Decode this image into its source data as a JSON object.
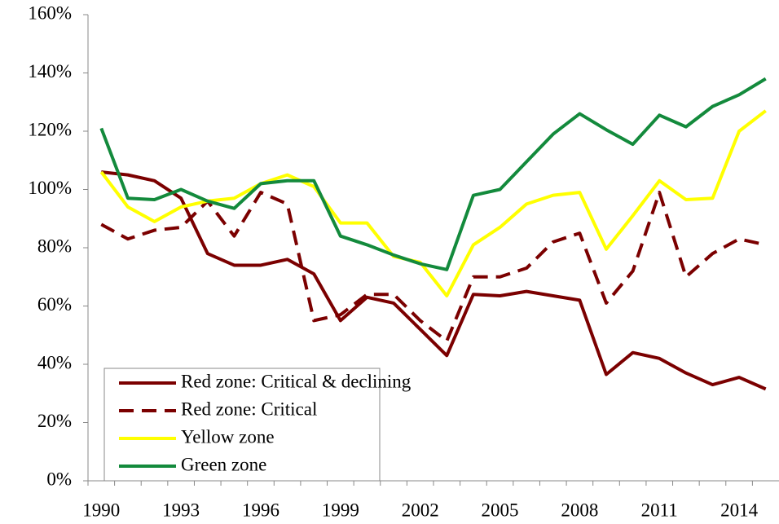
{
  "chart_data": {
    "type": "line",
    "categories": [
      "1990",
      null,
      null,
      "1993",
      null,
      null,
      "1996",
      null,
      null,
      "1999",
      null,
      null,
      "2002",
      null,
      null,
      "2005",
      null,
      null,
      "2008",
      null,
      null,
      "2011",
      null,
      null,
      "2014",
      null
    ],
    "series": [
      {
        "name": "Red zone: Critical & declining",
        "color": "#7b0000",
        "dash": false,
        "values": [
          106,
          105,
          103,
          97,
          78,
          74,
          74,
          76,
          71,
          55,
          63,
          61,
          52,
          43,
          64,
          63.5,
          65,
          63.5,
          62,
          36.5,
          44,
          42,
          37,
          33,
          35.5,
          31.5
        ]
      },
      {
        "name": "Red zone: Critical",
        "color": "#7b0000",
        "dash": true,
        "values": [
          88,
          83,
          86,
          87,
          96,
          84,
          99,
          95,
          55,
          57,
          64,
          64,
          55,
          48,
          70,
          70,
          73,
          82,
          85,
          61,
          72,
          99,
          70,
          78,
          83,
          81
        ]
      },
      {
        "name": "Yellow zone",
        "color": "#ffff00",
        "dash": false,
        "values": [
          106,
          94,
          89,
          94,
          96,
          97,
          102,
          105,
          101,
          88.5,
          88.5,
          77,
          75,
          63.5,
          81,
          87,
          95,
          98,
          99,
          79.5,
          91,
          103,
          96.5,
          97,
          120,
          127
        ]
      },
      {
        "name": "Green zone",
        "color": "#138a3c",
        "dash": false,
        "values": [
          121,
          97,
          96.5,
          100,
          96,
          93.5,
          102,
          103,
          103,
          84,
          81,
          77.5,
          74.5,
          72.5,
          98,
          100,
          109.5,
          119,
          126,
          120.5,
          115.5,
          125.5,
          121.5,
          128.5,
          132.5,
          138
        ]
      }
    ],
    "ylim": [
      0,
      160
    ],
    "yticks": [
      {
        "value": 0,
        "label": "0%"
      },
      {
        "value": 20,
        "label": "20%"
      },
      {
        "value": 40,
        "label": "40%"
      },
      {
        "value": 60,
        "label": "60%"
      },
      {
        "value": 80,
        "label": "80%"
      },
      {
        "value": 100,
        "label": "100%"
      },
      {
        "value": 120,
        "label": "120%"
      },
      {
        "value": 140,
        "label": "140%"
      },
      {
        "value": 160,
        "label": "160%"
      }
    ],
    "grid": false,
    "legend": "lower left"
  }
}
